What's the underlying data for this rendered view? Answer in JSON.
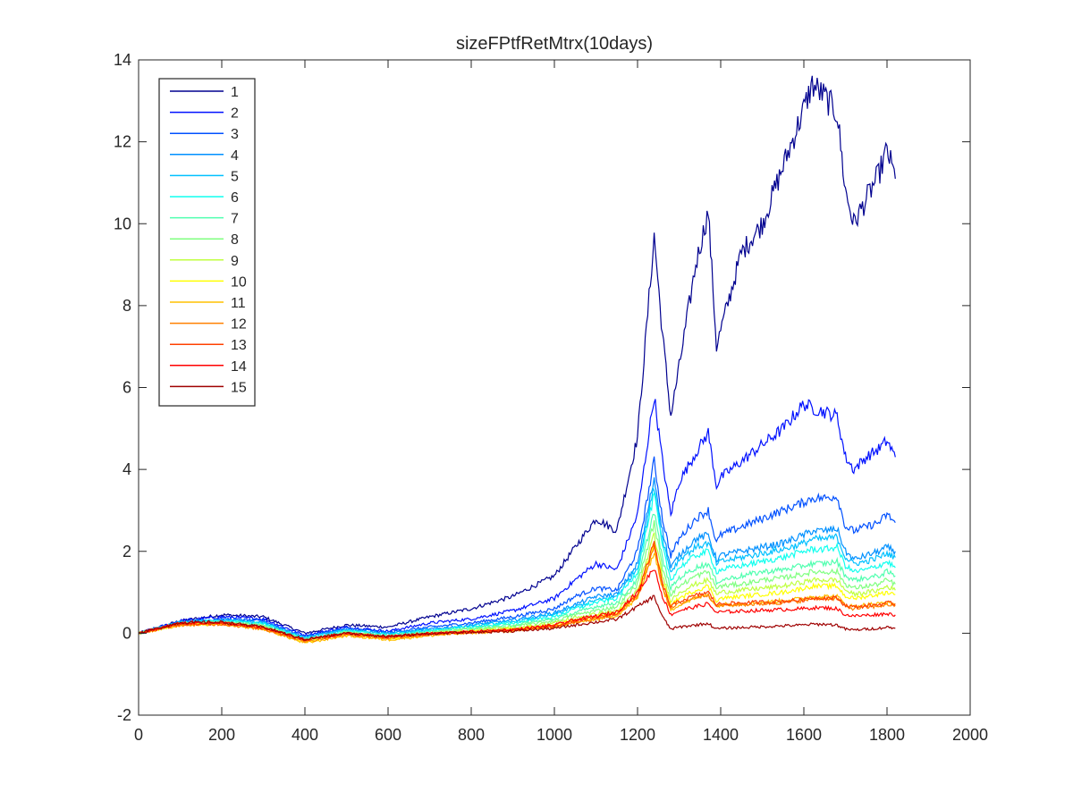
{
  "chart_data": {
    "type": "line",
    "title": "sizeFPtfRetMtrx(10days)",
    "xlabel": "",
    "ylabel": "",
    "xlim": [
      0,
      2000
    ],
    "ylim": [
      -2,
      14
    ],
    "x_ticks": [
      "0",
      "200",
      "400",
      "600",
      "800",
      "1000",
      "1200",
      "1400",
      "1600",
      "1800",
      "2000"
    ],
    "y_ticks": [
      "-2",
      "0",
      "2",
      "4",
      "6",
      "8",
      "10",
      "12",
      "14"
    ],
    "grid": false,
    "legend_position": "top-left",
    "x": [
      0,
      100,
      200,
      300,
      400,
      500,
      600,
      700,
      800,
      900,
      1000,
      1050,
      1100,
      1150,
      1200,
      1240,
      1260,
      1280,
      1300,
      1340,
      1370,
      1390,
      1400,
      1450,
      1500,
      1550,
      1600,
      1620,
      1650,
      1680,
      1700,
      1720,
      1750,
      1780,
      1800,
      1820
    ],
    "series": [
      {
        "name": "1",
        "color": "#00008f",
        "values": [
          0,
          0.3,
          0.45,
          0.4,
          0,
          0.2,
          0.15,
          0.4,
          0.6,
          0.9,
          1.4,
          2.1,
          2.8,
          2.5,
          4.8,
          9.7,
          7.3,
          5.3,
          6.5,
          9.0,
          10.3,
          7.0,
          7.4,
          9.3,
          10.0,
          11.4,
          12.8,
          13.4,
          13.1,
          12.7,
          10.8,
          10.0,
          10.6,
          11.2,
          11.8,
          11.1
        ]
      },
      {
        "name": "2",
        "color": "#0010ff",
        "values": [
          0,
          0.3,
          0.4,
          0.35,
          -0.05,
          0.15,
          0.05,
          0.25,
          0.35,
          0.55,
          0.85,
          1.3,
          1.7,
          1.55,
          2.9,
          5.8,
          4.2,
          2.9,
          3.7,
          4.4,
          4.9,
          3.6,
          3.8,
          4.2,
          4.6,
          5.0,
          5.6,
          5.5,
          5.4,
          5.3,
          4.3,
          4.0,
          4.3,
          4.5,
          4.7,
          4.3
        ]
      },
      {
        "name": "3",
        "color": "#0050ff",
        "values": [
          0,
          0.28,
          0.35,
          0.3,
          -0.08,
          0.12,
          0.02,
          0.15,
          0.25,
          0.4,
          0.6,
          0.9,
          1.1,
          1.05,
          2.0,
          4.2,
          2.8,
          1.9,
          2.3,
          2.8,
          3.0,
          2.2,
          2.4,
          2.6,
          2.8,
          3.0,
          3.2,
          3.3,
          3.3,
          3.35,
          2.6,
          2.5,
          2.6,
          2.7,
          2.9,
          2.7
        ]
      },
      {
        "name": "4",
        "color": "#0090ff",
        "values": [
          0,
          0.27,
          0.33,
          0.27,
          -0.1,
          0.1,
          0,
          0.1,
          0.2,
          0.32,
          0.5,
          0.7,
          0.9,
          0.95,
          1.7,
          3.8,
          2.5,
          1.6,
          1.9,
          2.3,
          2.4,
          1.8,
          1.9,
          2.0,
          2.1,
          2.2,
          2.4,
          2.5,
          2.5,
          2.55,
          2.0,
          1.8,
          1.9,
          2.0,
          2.1,
          2.0
        ]
      },
      {
        "name": "5",
        "color": "#00c0ff",
        "values": [
          0,
          0.26,
          0.32,
          0.25,
          -0.12,
          0.08,
          -0.02,
          0.08,
          0.18,
          0.28,
          0.45,
          0.65,
          0.8,
          0.9,
          1.6,
          3.6,
          2.3,
          1.5,
          1.8,
          2.1,
          2.2,
          1.7,
          1.75,
          1.85,
          1.95,
          2.05,
          2.2,
          2.3,
          2.3,
          2.35,
          1.85,
          1.7,
          1.75,
          1.85,
          1.95,
          1.85
        ]
      },
      {
        "name": "6",
        "color": "#10ffef",
        "values": [
          0,
          0.25,
          0.3,
          0.23,
          -0.13,
          0.06,
          -0.04,
          0.06,
          0.15,
          0.25,
          0.4,
          0.6,
          0.75,
          0.85,
          1.5,
          3.4,
          2.1,
          1.3,
          1.6,
          1.9,
          2.0,
          1.5,
          1.55,
          1.65,
          1.75,
          1.85,
          2.0,
          2.05,
          2.05,
          2.1,
          1.65,
          1.5,
          1.55,
          1.65,
          1.75,
          1.6
        ]
      },
      {
        "name": "7",
        "color": "#50ffaf",
        "values": [
          0,
          0.24,
          0.28,
          0.2,
          -0.15,
          0.04,
          -0.06,
          0.04,
          0.12,
          0.2,
          0.35,
          0.5,
          0.65,
          0.75,
          1.3,
          3.0,
          1.8,
          1.1,
          1.35,
          1.6,
          1.7,
          1.25,
          1.3,
          1.4,
          1.5,
          1.55,
          1.65,
          1.7,
          1.7,
          1.75,
          1.4,
          1.3,
          1.35,
          1.4,
          1.5,
          1.4
        ]
      },
      {
        "name": "8",
        "color": "#80ff80",
        "values": [
          0,
          0.23,
          0.27,
          0.18,
          -0.17,
          0.02,
          -0.08,
          0.02,
          0.1,
          0.17,
          0.3,
          0.45,
          0.55,
          0.65,
          1.2,
          2.7,
          1.6,
          0.95,
          1.15,
          1.4,
          1.5,
          1.1,
          1.15,
          1.2,
          1.3,
          1.35,
          1.45,
          1.5,
          1.5,
          1.5,
          1.2,
          1.1,
          1.15,
          1.2,
          1.3,
          1.2
        ]
      },
      {
        "name": "9",
        "color": "#c0ff40",
        "values": [
          0,
          0.22,
          0.25,
          0.15,
          -0.19,
          0,
          -0.1,
          0,
          0.07,
          0.13,
          0.25,
          0.38,
          0.47,
          0.55,
          1.05,
          2.4,
          1.4,
          0.8,
          1.0,
          1.2,
          1.3,
          0.95,
          1.0,
          1.05,
          1.1,
          1.15,
          1.25,
          1.3,
          1.3,
          1.3,
          1.05,
          0.95,
          1.0,
          1.05,
          1.15,
          1.05
        ]
      },
      {
        "name": "10",
        "color": "#ffff00",
        "values": [
          0,
          0.21,
          0.24,
          0.13,
          -0.22,
          -0.03,
          -0.13,
          -0.03,
          0.04,
          0.1,
          0.2,
          0.32,
          0.4,
          0.5,
          0.95,
          2.2,
          1.25,
          0.7,
          0.85,
          1.05,
          1.15,
          0.8,
          0.85,
          0.9,
          0.95,
          1.0,
          1.1,
          1.15,
          1.15,
          1.15,
          0.9,
          0.85,
          0.9,
          0.95,
          1.0,
          0.95
        ]
      },
      {
        "name": "11",
        "color": "#ffc000",
        "values": [
          0,
          0.2,
          0.22,
          0.1,
          -0.24,
          -0.06,
          -0.16,
          -0.06,
          0.01,
          0.06,
          0.15,
          0.26,
          0.34,
          0.43,
          0.85,
          2.0,
          1.1,
          0.55,
          0.7,
          0.85,
          0.95,
          0.65,
          0.7,
          0.72,
          0.75,
          0.8,
          0.85,
          0.9,
          0.9,
          0.9,
          0.7,
          0.65,
          0.7,
          0.72,
          0.75,
          0.7
        ]
      },
      {
        "name": "12",
        "color": "#ff8000",
        "values": [
          0,
          0.2,
          0.22,
          0.1,
          -0.2,
          -0.04,
          -0.12,
          -0.04,
          0.02,
          0.07,
          0.16,
          0.27,
          0.35,
          0.45,
          0.9,
          2.1,
          1.15,
          0.6,
          0.72,
          0.88,
          0.95,
          0.65,
          0.68,
          0.7,
          0.72,
          0.75,
          0.8,
          0.85,
          0.85,
          0.85,
          0.65,
          0.6,
          0.63,
          0.66,
          0.7,
          0.68
        ]
      },
      {
        "name": "13",
        "color": "#ff4000",
        "values": [
          0,
          0.22,
          0.24,
          0.12,
          -0.18,
          -0.02,
          -0.1,
          -0.02,
          0.03,
          0.08,
          0.18,
          0.3,
          0.38,
          0.48,
          0.95,
          2.2,
          1.2,
          0.65,
          0.78,
          0.92,
          1.0,
          0.7,
          0.72,
          0.74,
          0.76,
          0.78,
          0.82,
          0.86,
          0.86,
          0.86,
          0.68,
          0.64,
          0.67,
          0.7,
          0.74,
          0.72
        ]
      },
      {
        "name": "14",
        "color": "#ff0000",
        "values": [
          0,
          0.25,
          0.26,
          0.14,
          -0.16,
          0,
          -0.08,
          0,
          0.04,
          0.09,
          0.2,
          0.33,
          0.42,
          0.52,
          1.0,
          1.6,
          0.9,
          0.45,
          0.55,
          0.65,
          0.72,
          0.5,
          0.52,
          0.54,
          0.56,
          0.58,
          0.6,
          0.62,
          0.62,
          0.6,
          0.45,
          0.42,
          0.44,
          0.46,
          0.48,
          0.45
        ]
      },
      {
        "name": "15",
        "color": "#9f0000",
        "values": [
          0,
          0.26,
          0.27,
          0.15,
          -0.15,
          0,
          -0.08,
          -0.01,
          0.02,
          0.05,
          0.12,
          0.2,
          0.27,
          0.34,
          0.65,
          0.9,
          0.4,
          0.1,
          0.15,
          0.2,
          0.24,
          0.1,
          0.12,
          0.14,
          0.16,
          0.18,
          0.2,
          0.22,
          0.22,
          0.2,
          0.1,
          0.08,
          0.1,
          0.12,
          0.15,
          0.12
        ]
      }
    ]
  }
}
